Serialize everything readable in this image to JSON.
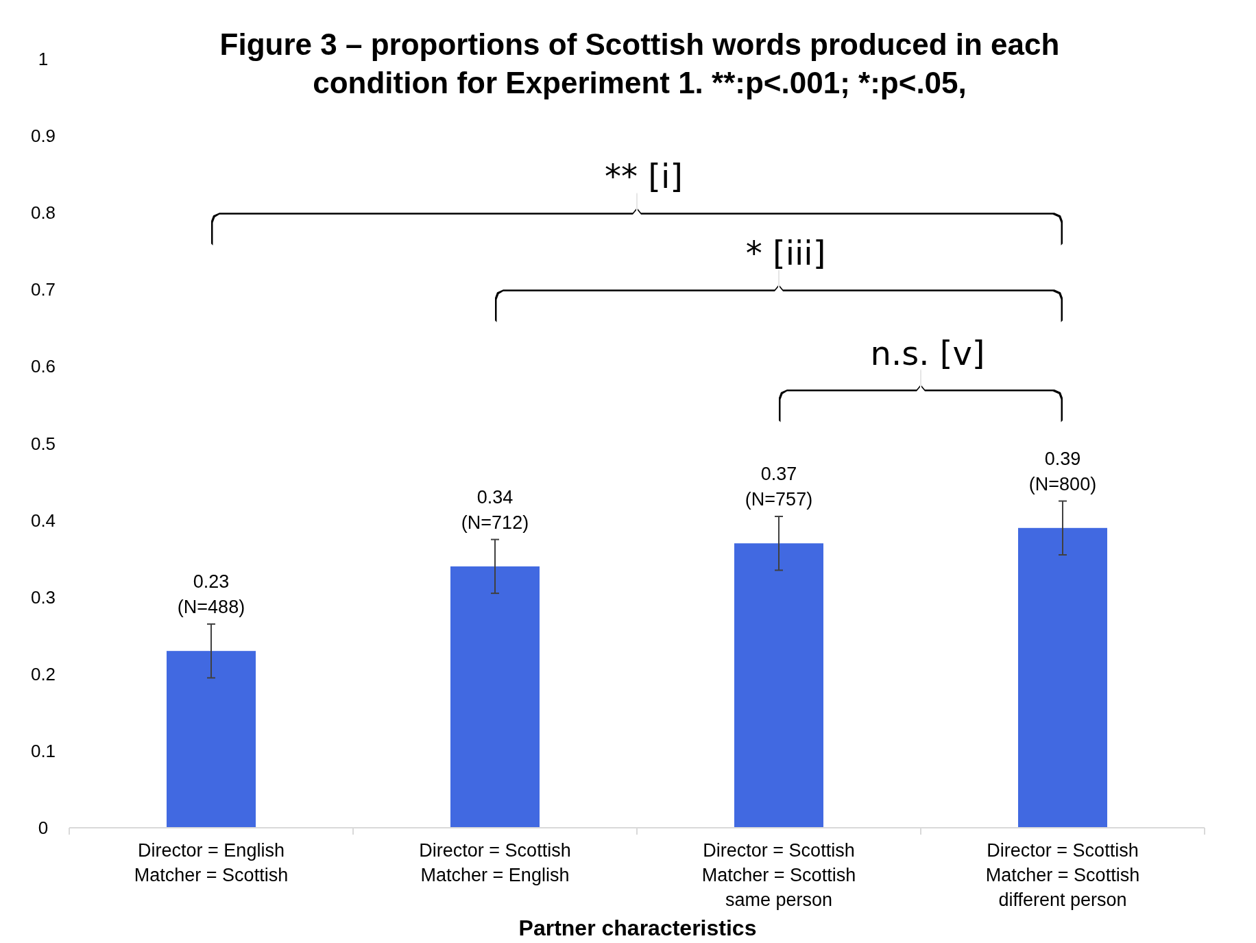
{
  "chart_data": {
    "type": "bar",
    "title": "Figure 3 – proportions of Scottish words produced in each\ncondition for Experiment 1. **:p<.001; *:p<.05,",
    "xlabel": "Partner characteristics",
    "categories": [
      "Director = English\nMatcher = Scottish",
      "Director = Scottish\nMatcher = English",
      "Director = Scottish\nMatcher = Scottish\nsame person",
      "Director = Scottish\nMatcher = Scottish\ndifferent person"
    ],
    "values": [
      0.23,
      0.34,
      0.37,
      0.39
    ],
    "color": "#4169e1",
    "errors": [
      0.035,
      0.035,
      0.035,
      0.035
    ],
    "value_labels": [
      "0.23\n(N=488)",
      "0.34\n(N=712)",
      "0.37\n(N=757)",
      "0.39\n(N=800)"
    ],
    "ylim": [
      0,
      1
    ],
    "yticks": [
      0,
      0.1,
      0.2,
      0.3,
      0.4,
      0.5,
      0.6,
      0.7,
      0.8,
      0.9,
      1
    ],
    "grid": false,
    "annotations": [
      "** [i]",
      "* [iii]",
      "n.s. [v]"
    ]
  }
}
